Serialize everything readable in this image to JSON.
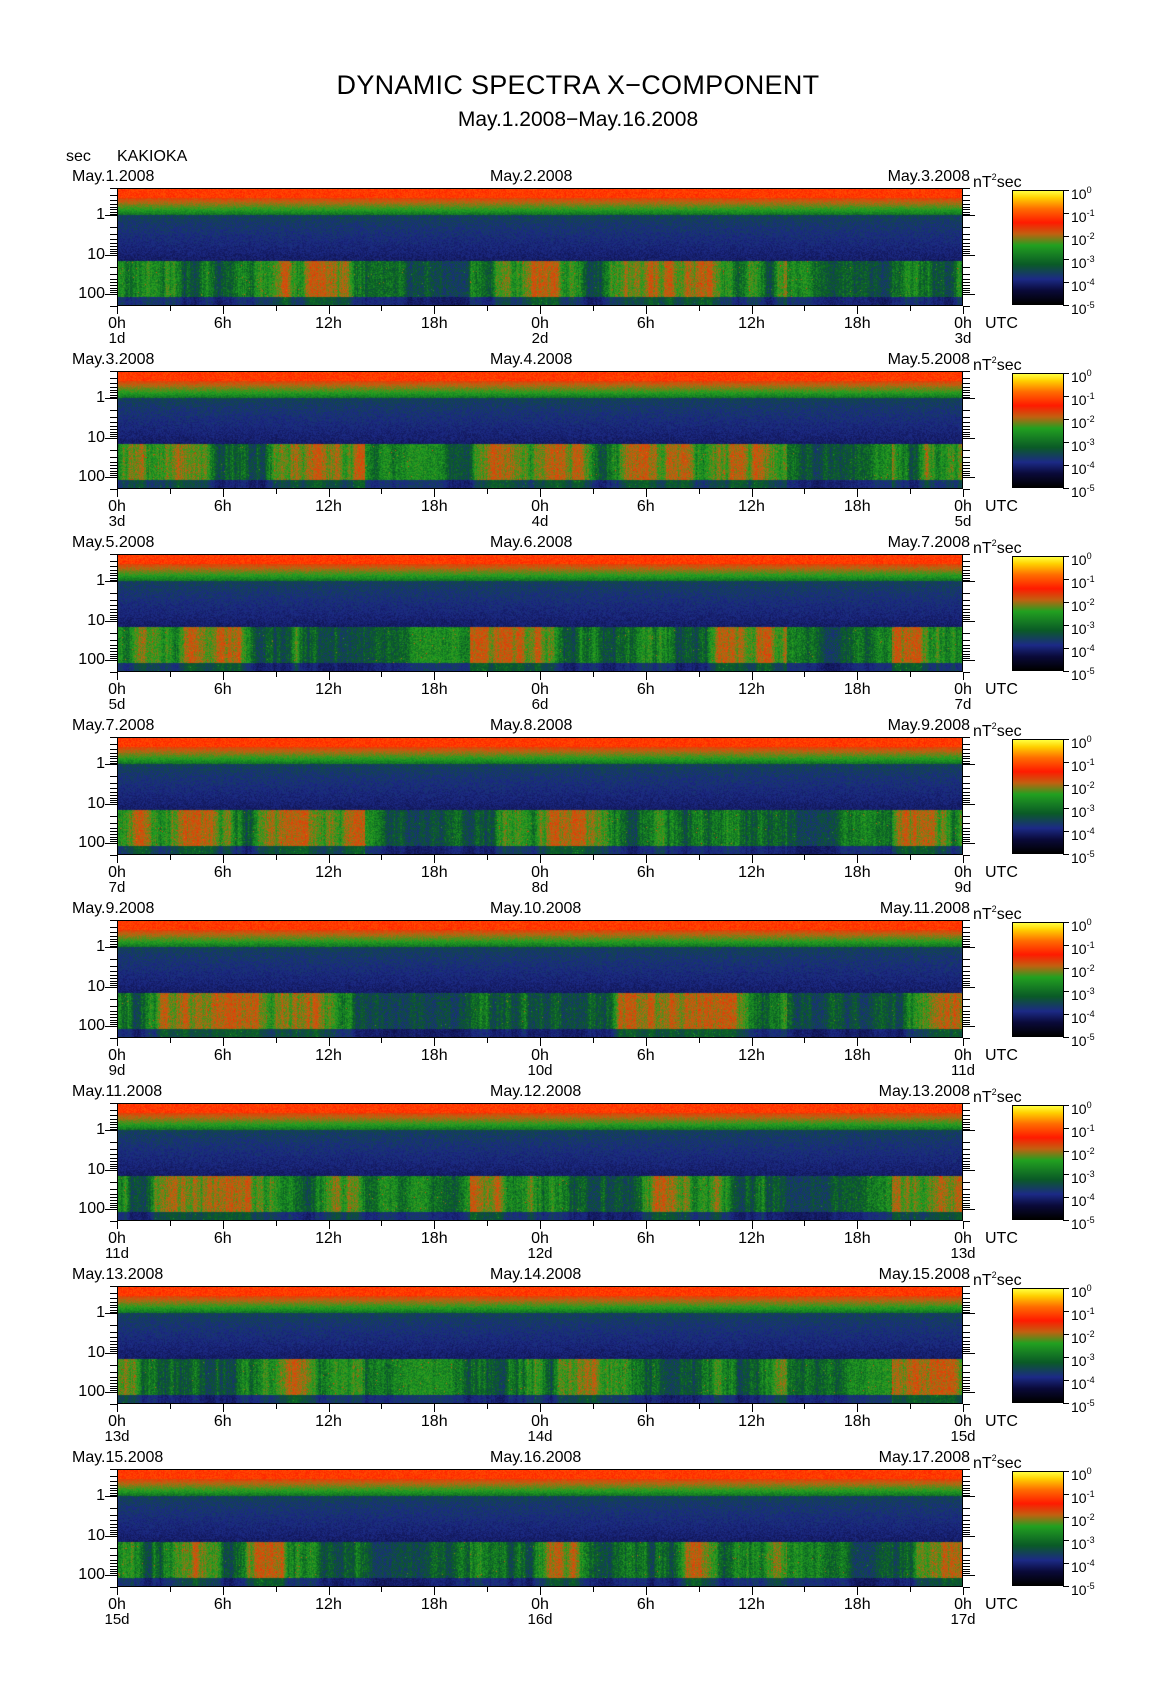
{
  "chart_data": {
    "type": "heatmap",
    "title": "DYNAMIC SPECTRA X−COMPONENT",
    "subtitle": "May.1.2008−May.16.2008",
    "station": "KAKIOKA",
    "y_unit_label": "sec",
    "y_axis": {
      "scale": "log",
      "ticks": [
        "1",
        "10",
        "100"
      ],
      "range_sec": [
        0.2,
        200
      ]
    },
    "x_axis_ticks": [
      "0h",
      "6h",
      "12h",
      "18h",
      "0h",
      "6h",
      "12h",
      "18h",
      "0h"
    ],
    "x_unit_label": "UTC",
    "colorbar": {
      "unit_base": "nT",
      "unit_exp": "2",
      "unit_suffix": "sec",
      "scale": "log",
      "range": [
        1e-05,
        1
      ],
      "tick_bases": [
        "10",
        "10",
        "10",
        "10",
        "10",
        "10"
      ],
      "tick_exps": [
        "0",
        "-1",
        "-2",
        "-3",
        "-4",
        "-5"
      ],
      "colors": [
        "#000000",
        "#0a0a3a",
        "#1c2a86",
        "#0a5a26",
        "#22a020",
        "#c26010",
        "#ff1a00",
        "#ff6a00",
        "#ffd000",
        "#ffff40"
      ]
    },
    "panels": [
      {
        "left_date": "May.1.2008",
        "mid_date": "May.2.2008",
        "right_date": "May.3.2008",
        "day_labels": [
          "1d",
          "2d",
          "3d"
        ]
      },
      {
        "left_date": "May.3.2008",
        "mid_date": "May.4.2008",
        "right_date": "May.5.2008",
        "day_labels": [
          "3d",
          "4d",
          "5d"
        ]
      },
      {
        "left_date": "May.5.2008",
        "mid_date": "May.6.2008",
        "right_date": "May.7.2008",
        "day_labels": [
          "5d",
          "6d",
          "7d"
        ]
      },
      {
        "left_date": "May.7.2008",
        "mid_date": "May.8.2008",
        "right_date": "May.9.2008",
        "day_labels": [
          "7d",
          "8d",
          "9d"
        ]
      },
      {
        "left_date": "May.9.2008",
        "mid_date": "May.10.2008",
        "right_date": "May.11.2008",
        "day_labels": [
          "9d",
          "10d",
          "11d"
        ]
      },
      {
        "left_date": "May.11.2008",
        "mid_date": "May.12.2008",
        "right_date": "May.13.2008",
        "day_labels": [
          "11d",
          "12d",
          "13d"
        ]
      },
      {
        "left_date": "May.13.2008",
        "mid_date": "May.14.2008",
        "right_date": "May.15.2008",
        "day_labels": [
          "13d",
          "14d",
          "15d"
        ]
      },
      {
        "left_date": "May.15.2008",
        "mid_date": "May.16.2008",
        "right_date": "May.17.2008",
        "day_labels": [
          "15d",
          "16d",
          "17d"
        ]
      }
    ]
  }
}
